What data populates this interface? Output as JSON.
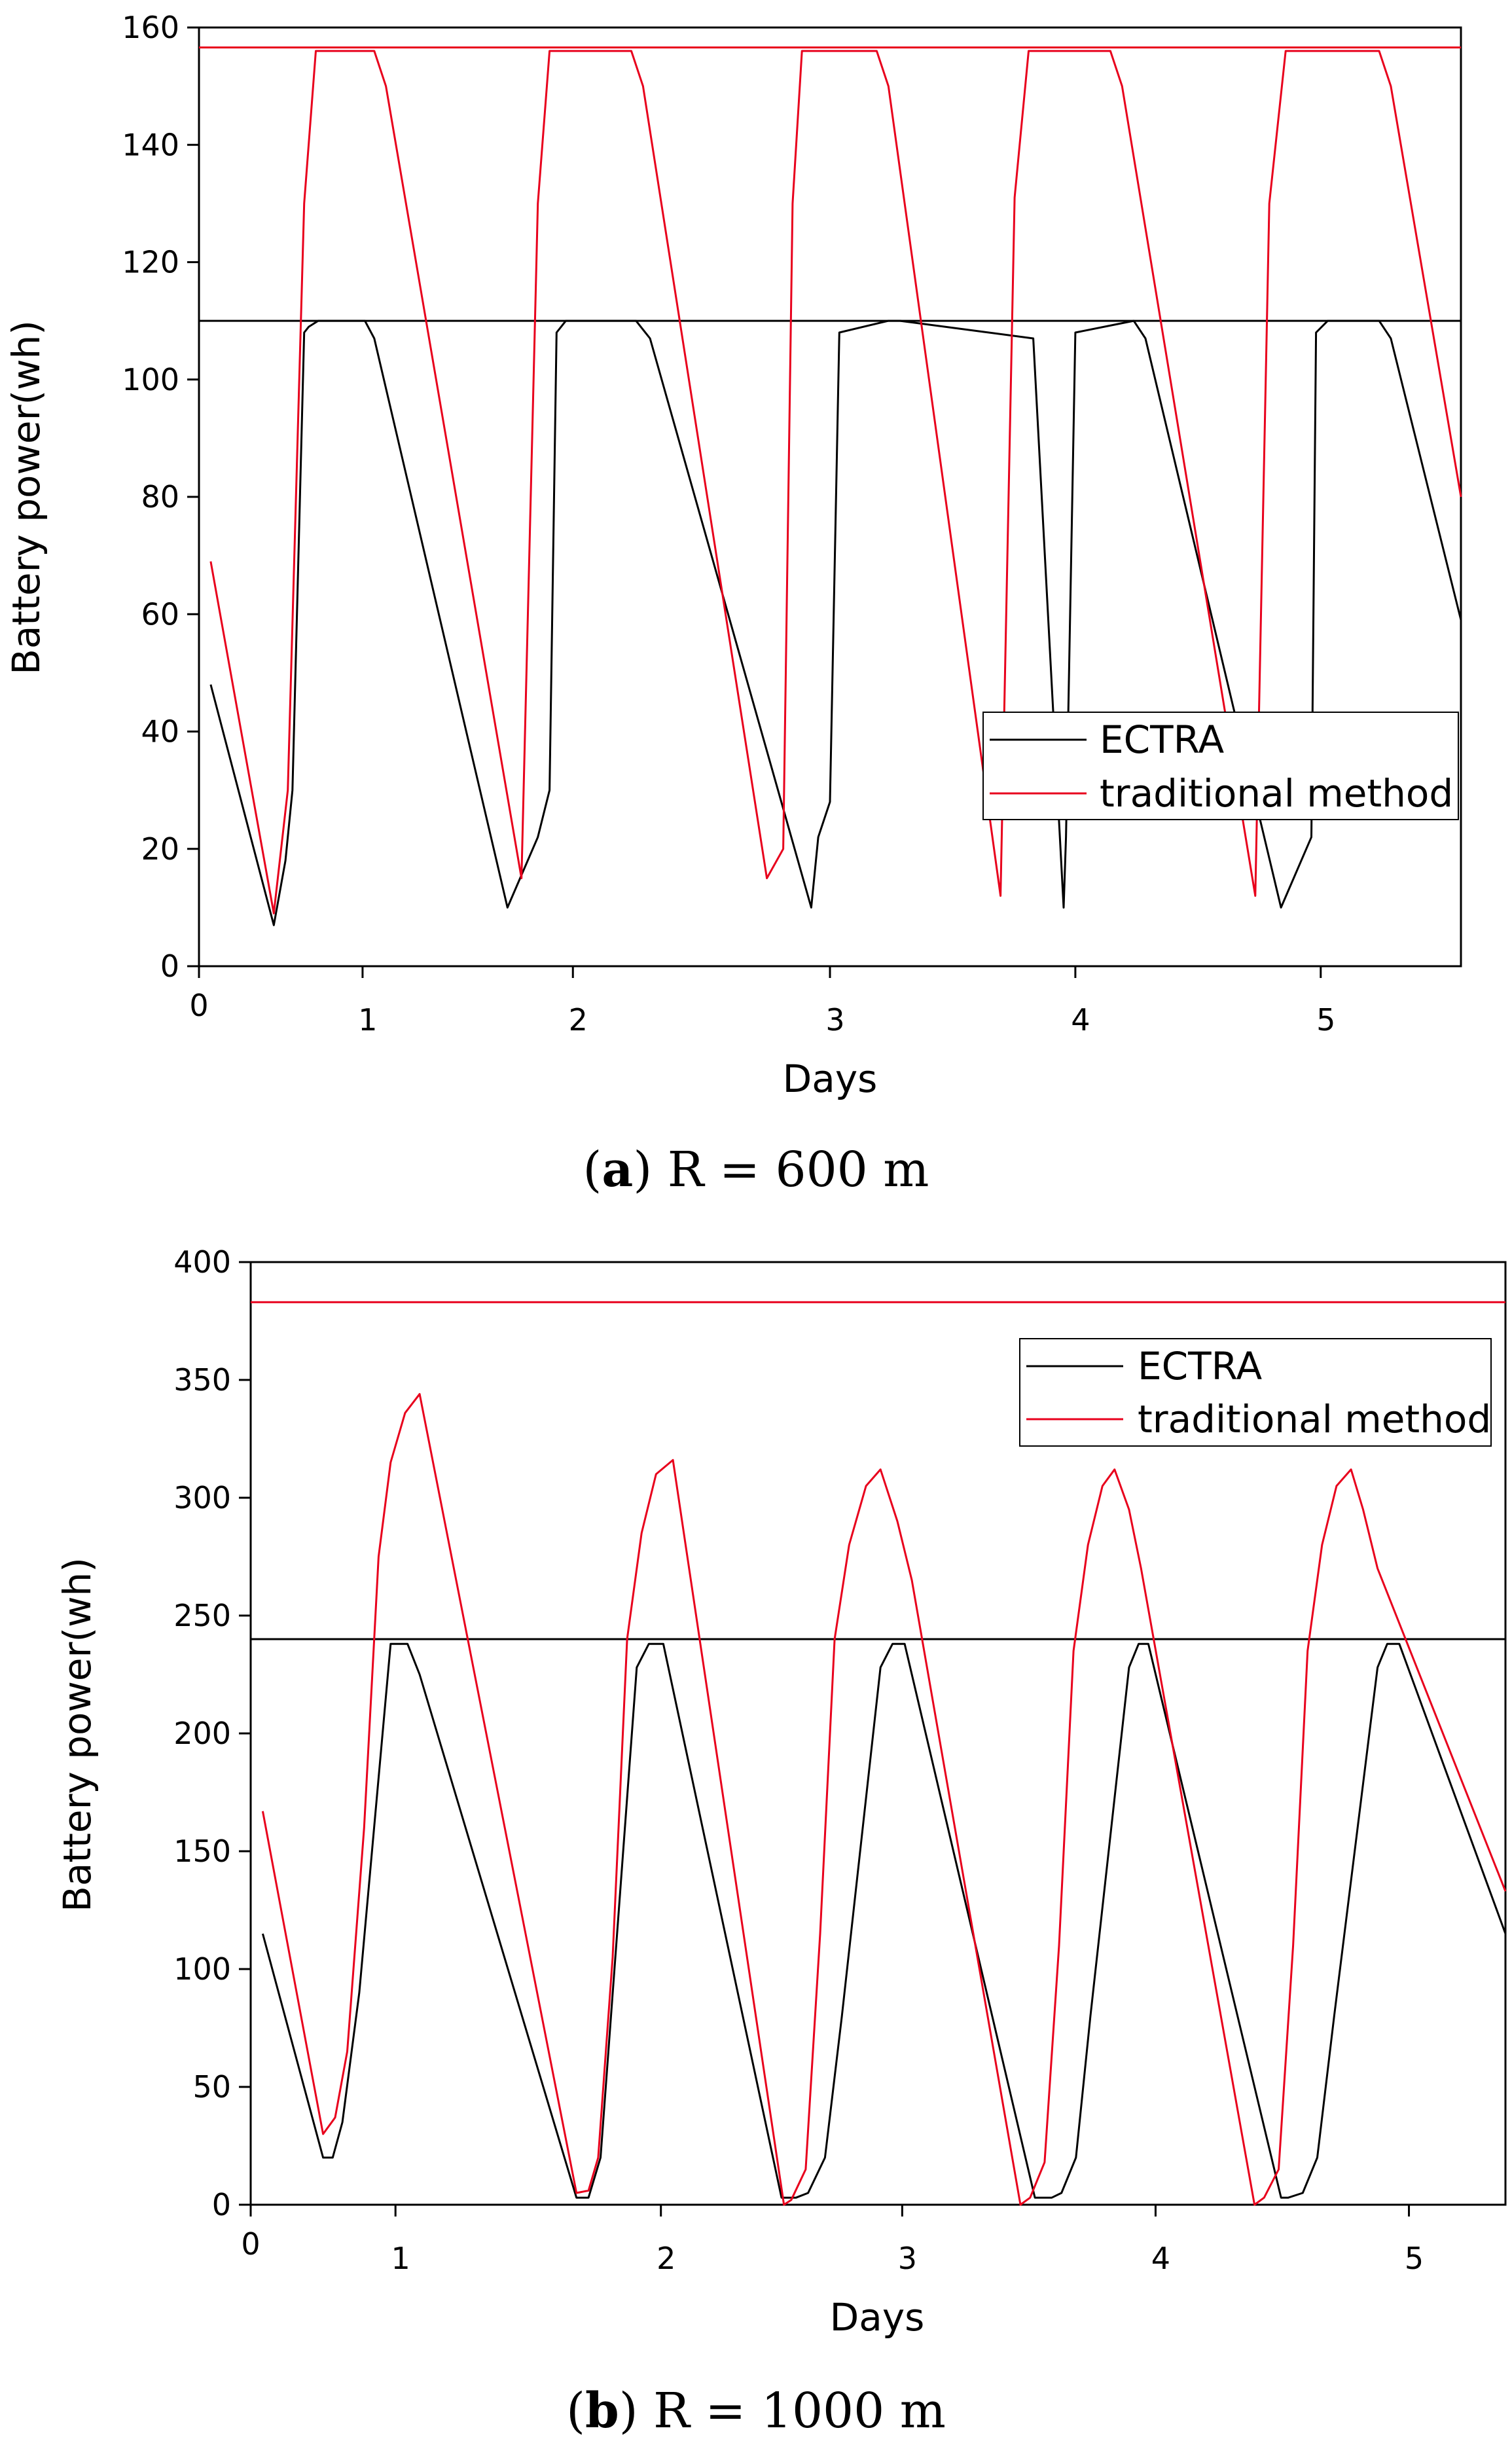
{
  "colors": {
    "ectra": "#000000",
    "traditional": "#e8001c",
    "axis": "#000000"
  },
  "chart_data": [
    {
      "type": "line",
      "caption": {
        "open": "(",
        "letter": "a",
        "close": ")",
        "text": " R = 600 m"
      },
      "xlabel": "Days",
      "ylabel": "Battery power(wh)",
      "xlim": [
        0,
        5.4
      ],
      "ylim": [
        0,
        160
      ],
      "x_ticks": [
        {
          "v": 0,
          "label": "0"
        },
        {
          "v": 0.7,
          "label": "1"
        },
        {
          "v": 1.6,
          "label": "2"
        },
        {
          "v": 2.7,
          "label": "3"
        },
        {
          "v": 3.75,
          "label": "4"
        },
        {
          "v": 4.8,
          "label": "5"
        }
      ],
      "y_ticks": [
        0,
        20,
        40,
        60,
        80,
        100,
        120,
        140,
        160
      ],
      "legend": [
        "ECTRA",
        "traditional method"
      ],
      "capacity_lines": [
        {
          "name": "traditional method",
          "value": 156.6
        },
        {
          "name": "ECTRA",
          "value": 110
        }
      ],
      "series": [
        {
          "name": "ECTRA",
          "x": [
            0.05,
            0.32,
            0.37,
            0.4,
            0.45,
            0.47,
            0.51,
            0.71,
            0.75,
            1.32,
            1.45,
            1.5,
            1.53,
            1.57,
            1.6,
            1.87,
            1.93,
            2.62,
            2.65,
            2.7,
            2.74,
            2.95,
            3.0,
            3.57,
            3.7,
            3.71,
            3.75,
            4.0,
            4.05,
            4.63,
            4.76,
            4.78,
            4.83,
            5.05,
            5.1,
            5.4
          ],
          "values": [
            48,
            7,
            18,
            30,
            108,
            109,
            110,
            110,
            107,
            10,
            22,
            30,
            108,
            110,
            110,
            110,
            107,
            10,
            22,
            28,
            108,
            110,
            110,
            107,
            10,
            22,
            108,
            110,
            107,
            10,
            22,
            108,
            110,
            110,
            107,
            59
          ]
        },
        {
          "name": "traditional method",
          "x": [
            0.05,
            0.32,
            0.38,
            0.45,
            0.5,
            0.75,
            0.8,
            1.38,
            1.45,
            1.5,
            1.57,
            1.85,
            1.9,
            2.43,
            2.5,
            2.54,
            2.58,
            2.62,
            2.66,
            2.9,
            2.95,
            3.43,
            3.49,
            3.55,
            3.61,
            3.65,
            3.7,
            3.9,
            3.95,
            4.52,
            4.58,
            4.65,
            4.7,
            4.75,
            4.8,
            5.05,
            5.1,
            5.4
          ],
          "values": [
            69,
            9,
            30,
            130,
            156,
            156,
            150,
            15,
            130,
            156,
            156,
            156,
            150,
            15,
            20,
            130,
            156,
            156,
            156,
            156,
            150,
            12,
            131,
            156,
            156,
            156,
            156,
            156,
            150,
            12,
            130,
            156,
            156,
            156,
            156,
            156,
            150,
            80
          ]
        }
      ]
    },
    {
      "type": "line",
      "caption": {
        "open": "(",
        "letter": "b",
        "close": ")",
        "text": " R = 1000 m"
      },
      "xlabel": "Days",
      "ylabel": "Battery power(wh)",
      "xlim": [
        0,
        5.2
      ],
      "ylim": [
        0,
        400
      ],
      "x_ticks": [
        {
          "v": 0,
          "label": "0"
        },
        {
          "v": 0.6,
          "label": "1"
        },
        {
          "v": 1.7,
          "label": "2"
        },
        {
          "v": 2.7,
          "label": "3"
        },
        {
          "v": 3.75,
          "label": "4"
        },
        {
          "v": 4.8,
          "label": "5"
        }
      ],
      "y_ticks": [
        0,
        50,
        100,
        150,
        200,
        250,
        300,
        350,
        400
      ],
      "legend": [
        "ECTRA",
        "traditional method"
      ],
      "capacity_lines": [
        {
          "name": "traditional method",
          "value": 383
        },
        {
          "name": "ECTRA",
          "value": 240
        }
      ],
      "series": [
        {
          "name": "ECTRA",
          "x": [
            0.05,
            0.3,
            0.34,
            0.38,
            0.45,
            0.58,
            0.6,
            0.65,
            0.7,
            1.35,
            1.4,
            1.45,
            1.6,
            1.65,
            1.71,
            2.2,
            2.26,
            2.31,
            2.38,
            2.45,
            2.61,
            2.66,
            2.71,
            3.25,
            3.32,
            3.36,
            3.42,
            3.48,
            3.64,
            3.68,
            3.72,
            4.27,
            4.3,
            4.36,
            4.42,
            4.49,
            4.67,
            4.71,
            4.76,
            5.2
          ],
          "values": [
            115,
            20,
            20,
            35,
            90,
            238,
            238,
            238,
            225,
            3,
            3,
            20,
            228,
            238,
            238,
            3,
            3,
            5,
            20,
            80,
            228,
            238,
            238,
            3,
            3,
            5,
            20,
            80,
            228,
            238,
            238,
            3,
            3,
            5,
            20,
            80,
            228,
            238,
            238,
            115
          ]
        },
        {
          "name": "traditional method",
          "x": [
            0.05,
            0.3,
            0.35,
            0.4,
            0.47,
            0.53,
            0.58,
            0.64,
            0.7,
            1.35,
            1.4,
            1.44,
            1.5,
            1.56,
            1.62,
            1.68,
            1.75,
            2.21,
            2.24,
            2.3,
            2.36,
            2.42,
            2.48,
            2.55,
            2.61,
            2.68,
            2.74,
            3.19,
            3.23,
            3.29,
            3.35,
            3.41,
            3.47,
            3.53,
            3.58,
            3.64,
            3.69,
            4.16,
            4.2,
            4.26,
            4.32,
            4.38,
            4.44,
            4.5,
            4.56,
            4.61,
            4.67,
            5.2
          ],
          "values": [
            167,
            30,
            37,
            65,
            160,
            275,
            315,
            336,
            344,
            5,
            6,
            20,
            105,
            240,
            285,
            310,
            316,
            0,
            2,
            15,
            115,
            240,
            280,
            305,
            312,
            290,
            265,
            0,
            3,
            18,
            110,
            235,
            280,
            305,
            312,
            295,
            270,
            0,
            3,
            15,
            110,
            235,
            280,
            305,
            312,
            295,
            270,
            133
          ]
        }
      ]
    }
  ]
}
